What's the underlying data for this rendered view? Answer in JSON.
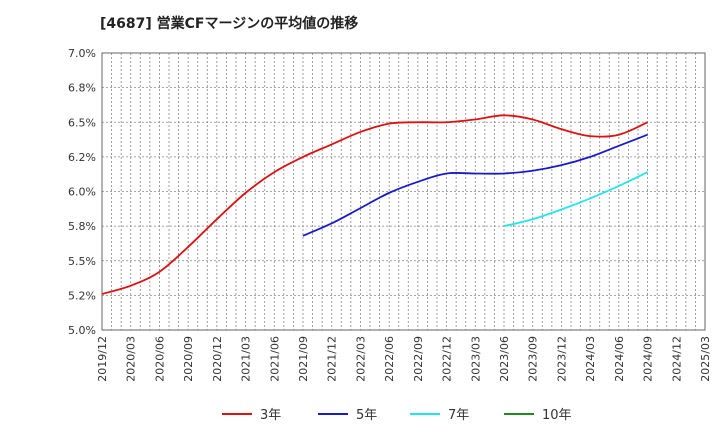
{
  "chart_data": {
    "type": "line",
    "title": "[4687]  営業CFマージンの平均値の推移",
    "x_ticks": [
      "2019/12",
      "2020/03",
      "2020/06",
      "2020/09",
      "2020/12",
      "2021/03",
      "2021/06",
      "2021/09",
      "2021/12",
      "2022/03",
      "2022/06",
      "2022/09",
      "2022/12",
      "2023/03",
      "2023/06",
      "2023/09",
      "2023/12",
      "2024/03",
      "2024/06",
      "2024/09",
      "2024/12",
      "2025/03"
    ],
    "y_ticks": [
      "5.0%",
      "5.2%",
      "5.5%",
      "5.8%",
      "6.0%",
      "6.2%",
      "6.5%",
      "6.8%",
      "7.0%"
    ],
    "ylim": [
      5.0,
      7.0
    ],
    "grid": true,
    "legend_position": "bottom",
    "series": [
      {
        "name": "3年",
        "color": "#dd1111",
        "x": [
          "2019/12",
          "2020/03",
          "2020/06",
          "2020/09",
          "2020/12",
          "2021/03",
          "2021/06",
          "2021/09",
          "2021/12",
          "2022/03",
          "2022/06",
          "2022/09",
          "2022/12",
          "2023/03",
          "2023/06",
          "2023/09",
          "2023/12",
          "2024/03",
          "2024/06",
          "2024/09"
        ],
        "values": [
          5.26,
          5.32,
          5.42,
          5.6,
          5.8,
          5.99,
          6.14,
          6.25,
          6.34,
          6.43,
          6.49,
          6.5,
          6.5,
          6.52,
          6.55,
          6.52,
          6.45,
          6.4,
          6.41,
          6.5
        ]
      },
      {
        "name": "5年",
        "color": "#1a1acc",
        "x": [
          "2021/09",
          "2021/12",
          "2022/03",
          "2022/06",
          "2022/09",
          "2022/12",
          "2023/03",
          "2023/06",
          "2023/09",
          "2023/12",
          "2024/03",
          "2024/06",
          "2024/09"
        ],
        "values": [
          5.68,
          5.77,
          5.88,
          5.99,
          6.07,
          6.13,
          6.13,
          6.13,
          6.15,
          6.19,
          6.25,
          6.33,
          6.41
        ]
      },
      {
        "name": "7年",
        "color": "#22e5ee",
        "x": [
          "2023/06",
          "2023/09",
          "2023/12",
          "2024/03",
          "2024/06",
          "2024/09"
        ],
        "values": [
          5.75,
          5.8,
          5.87,
          5.95,
          6.04,
          6.14
        ]
      },
      {
        "name": "10年",
        "color": "#228822",
        "x": [],
        "values": []
      }
    ]
  }
}
